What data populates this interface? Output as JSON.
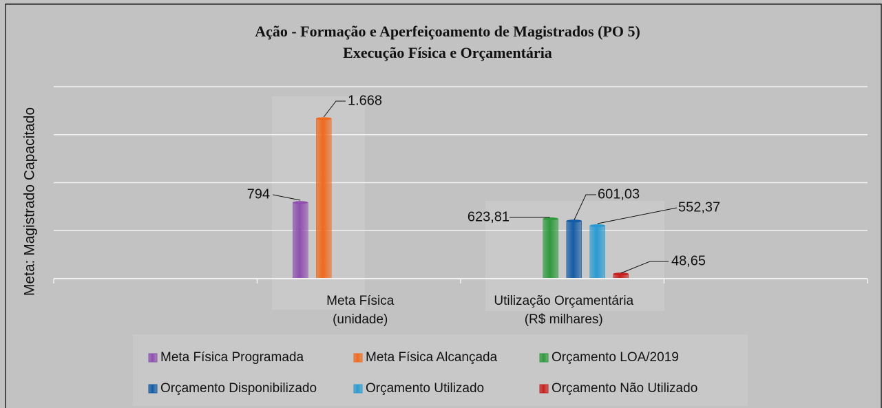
{
  "chart_data": {
    "type": "bar",
    "title": "Ação - Formação e Aperfeiçoamento de Magistrados (PO 5)",
    "subtitle": "Execução Física e Orçamentária",
    "y_label": "Meta: Magistrado Capacitado",
    "categories": [
      null,
      "Meta Física\n(unidade)",
      "Utilização Orçamentária\n(R$ milhares)",
      null
    ],
    "series": [
      {
        "name": "Meta Física Programada",
        "color": "#8e4fb0",
        "values": [
          null,
          794,
          null,
          null
        ],
        "value_labels": [
          null,
          "794",
          null,
          null
        ]
      },
      {
        "name": "Meta Física Alcançada",
        "color": "#f06a1e",
        "values": [
          null,
          1668,
          null,
          null
        ],
        "value_labels": [
          null,
          "1.668",
          null,
          null
        ]
      },
      {
        "name": "Orçamento LOA/2019",
        "color": "#2e9a3c",
        "values": [
          null,
          null,
          623.81,
          null
        ],
        "value_labels": [
          null,
          null,
          "623,81",
          null
        ]
      },
      {
        "name": "Orçamento Disponibilizado",
        "color": "#145ca6",
        "values": [
          null,
          null,
          601.03,
          null
        ],
        "value_labels": [
          null,
          null,
          "601,03",
          null
        ]
      },
      {
        "name": "Orçamento Utilizado",
        "color": "#2a9bd2",
        "values": [
          null,
          null,
          552.37,
          null
        ],
        "value_labels": [
          null,
          null,
          "552,37",
          null
        ]
      },
      {
        "name": "Orçamento Não Utilizado",
        "color": "#c8201e",
        "values": [
          null,
          null,
          48.65,
          null
        ],
        "value_labels": [
          null,
          null,
          "48,65",
          null
        ]
      }
    ],
    "ylim": [
      0,
      2000
    ],
    "yticks": [
      0,
      500,
      1000,
      1500,
      2000
    ],
    "grid": true,
    "legend": "bottom"
  }
}
